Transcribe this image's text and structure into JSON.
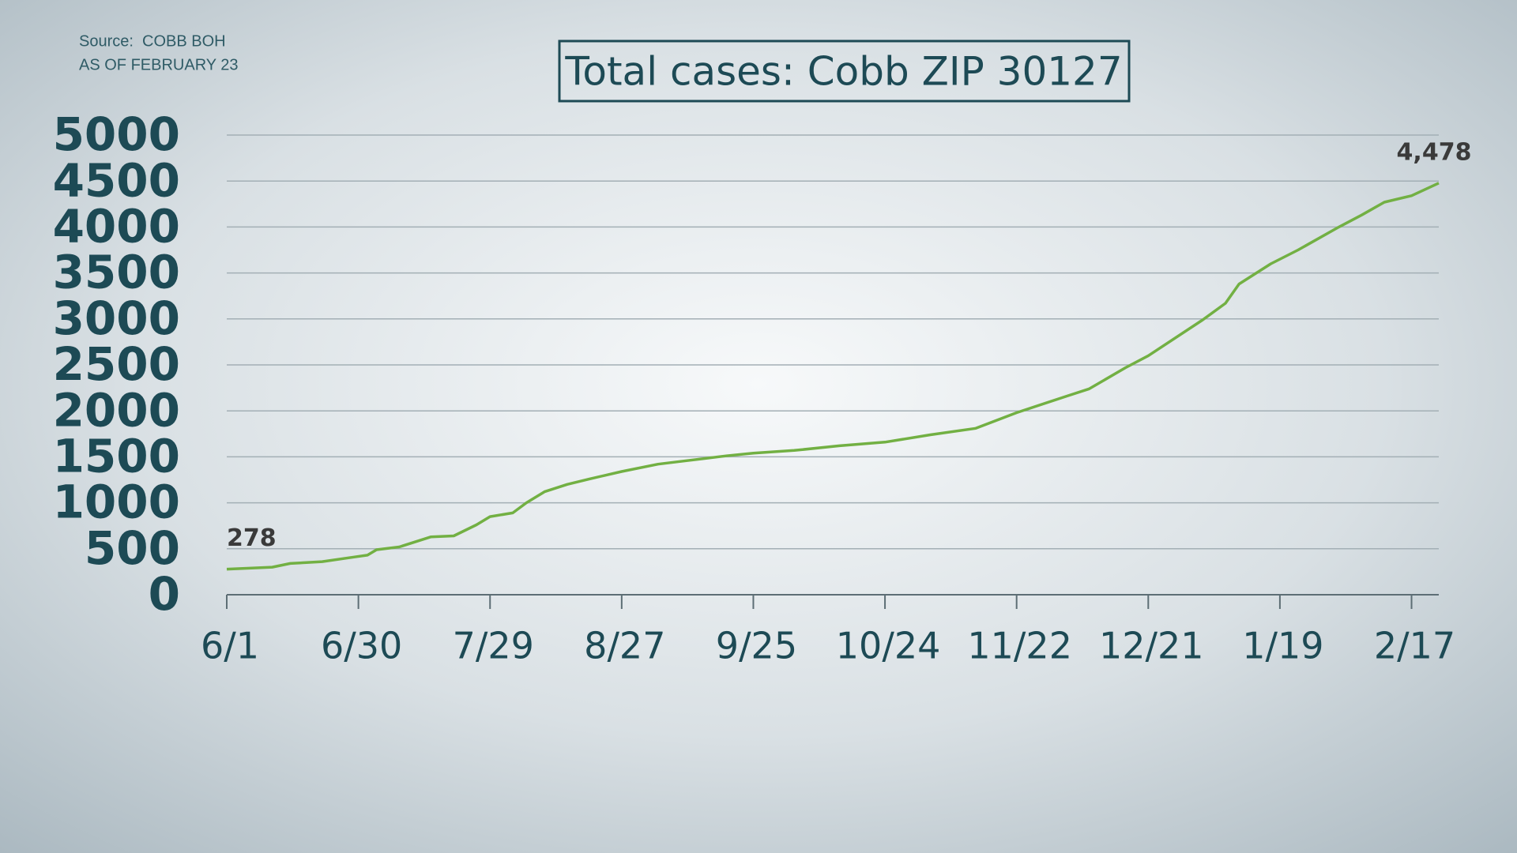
{
  "chart_data": {
    "type": "line",
    "title": "Total cases: Cobb ZIP 30127",
    "source": "Source:  COBB BOH",
    "note": "AS OF FEBRUARY 23",
    "x": [
      0,
      10,
      14,
      21,
      28,
      31,
      33,
      38,
      45,
      50,
      55,
      58,
      63,
      66,
      70,
      75,
      80,
      87,
      95,
      100,
      110,
      116,
      125,
      135,
      145,
      155,
      165,
      174,
      185,
      190,
      198,
      203,
      215,
      220,
      223,
      230,
      236,
      245,
      250,
      255,
      261,
      267
    ],
    "series": [
      {
        "color": "#72b043",
        "values": [
          278,
          300,
          340,
          360,
          410,
          430,
          490,
          520,
          630,
          640,
          760,
          850,
          890,
          1000,
          1120,
          1200,
          1260,
          1340,
          1420,
          1450,
          1510,
          1540,
          1570,
          1620,
          1660,
          1740,
          1810,
          1980,
          2160,
          2240,
          2470,
          2600,
          2990,
          3170,
          3380,
          3600,
          3750,
          4000,
          4130,
          4270,
          4340,
          4478
        ],
        "value_labels": [
          "278",
          null,
          null,
          null,
          null,
          null,
          null,
          null,
          null,
          null,
          null,
          null,
          null,
          null,
          null,
          null,
          null,
          null,
          null,
          null,
          null,
          null,
          null,
          null,
          null,
          null,
          null,
          null,
          null,
          null,
          null,
          null,
          null,
          null,
          null,
          null,
          null,
          null,
          null,
          null,
          null,
          "4,478"
        ]
      }
    ],
    "xlim": [
      0,
      267
    ],
    "xticks": [
      {
        "value": 0,
        "label": "6/1"
      },
      {
        "value": 29,
        "label": "6/30"
      },
      {
        "value": 58,
        "label": "7/29"
      },
      {
        "value": 87,
        "label": "8/27"
      },
      {
        "value": 116,
        "label": "9/25"
      },
      {
        "value": 145,
        "label": "10/24"
      },
      {
        "value": 174,
        "label": "11/22"
      },
      {
        "value": 203,
        "label": "12/21"
      },
      {
        "value": 232,
        "label": "1/19"
      },
      {
        "value": 261,
        "label": "2/17"
      }
    ],
    "ylim": [
      0,
      5000
    ],
    "yticks": [
      0,
      500,
      1000,
      1500,
      2000,
      2500,
      3000,
      3500,
      4000,
      4500,
      5000
    ],
    "grid": true
  }
}
